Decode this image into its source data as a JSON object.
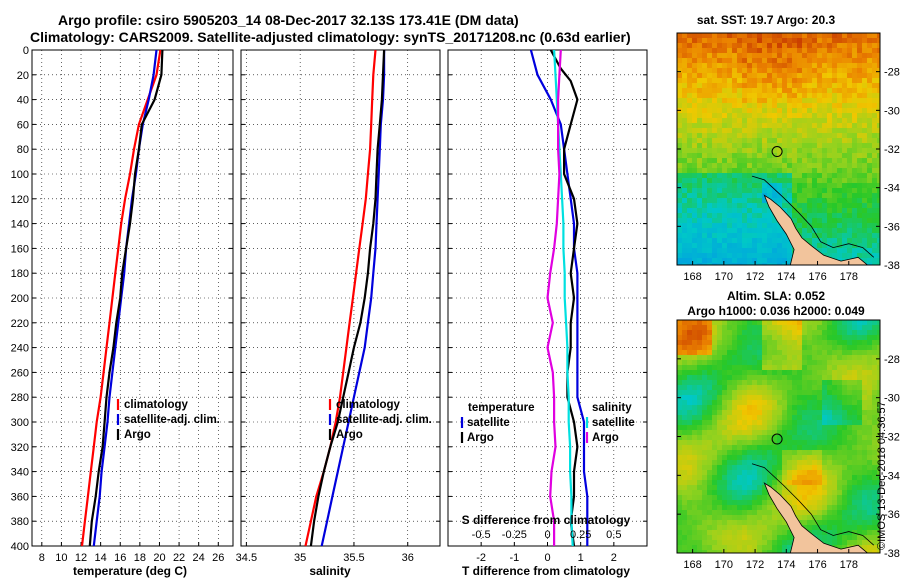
{
  "header": {
    "title_line1": "Argo profile: csiro 5905203_14 08-Dec-2017 32.13S 173.41E (DM data)",
    "title_line2": "Climatology: CARS2009. Satellite-adjusted climatology: synTS_20171208.nc (0.63d earlier)"
  },
  "colors": {
    "climatology": "#ff0000",
    "satellite": "#0000dd",
    "argo": "#000000",
    "salinity_diff": "#e000e0",
    "s_diff_sat": "#00e0e0"
  },
  "depth_ticks": [
    0,
    20,
    40,
    60,
    80,
    100,
    120,
    140,
    160,
    180,
    200,
    220,
    240,
    260,
    280,
    300,
    320,
    340,
    360,
    380,
    400
  ],
  "chart_data": [
    {
      "type": "line",
      "panel": "temperature",
      "xlabel": "temperature (deg C)",
      "ylabel": "depth",
      "xlim": [
        7,
        27.5
      ],
      "ylim": [
        400,
        0
      ],
      "xticks": [
        8,
        10,
        12,
        14,
        16,
        18,
        20,
        22,
        24,
        26
      ],
      "legend": [
        "climatology",
        "satellite-adj. clim.",
        "Argo"
      ],
      "series": [
        {
          "name": "climatology",
          "color": "#ff0000",
          "points": [
            [
              20.1,
              0
            ],
            [
              19.7,
              20
            ],
            [
              18.8,
              40
            ],
            [
              17.9,
              60
            ],
            [
              17.4,
              80
            ],
            [
              17.0,
              100
            ],
            [
              16.5,
              120
            ],
            [
              16.1,
              140
            ],
            [
              15.8,
              160
            ],
            [
              15.5,
              180
            ],
            [
              15.2,
              200
            ],
            [
              14.9,
              220
            ],
            [
              14.6,
              240
            ],
            [
              14.3,
              260
            ],
            [
              14.0,
              280
            ],
            [
              13.6,
              300
            ],
            [
              13.3,
              320
            ],
            [
              13.0,
              340
            ],
            [
              12.7,
              360
            ],
            [
              12.4,
              380
            ],
            [
              12.1,
              400
            ]
          ]
        },
        {
          "name": "satellite-adj. clim.",
          "color": "#0000dd",
          "points": [
            [
              19.7,
              0
            ],
            [
              19.4,
              20
            ],
            [
              18.9,
              40
            ],
            [
              18.3,
              60
            ],
            [
              17.9,
              80
            ],
            [
              17.6,
              100
            ],
            [
              17.2,
              120
            ],
            [
              16.9,
              140
            ],
            [
              16.6,
              160
            ],
            [
              16.4,
              180
            ],
            [
              16.1,
              200
            ],
            [
              15.8,
              220
            ],
            [
              15.5,
              240
            ],
            [
              15.2,
              260
            ],
            [
              14.9,
              280
            ],
            [
              14.7,
              300
            ],
            [
              14.4,
              320
            ],
            [
              14.1,
              340
            ],
            [
              13.9,
              360
            ],
            [
              13.6,
              380
            ],
            [
              13.3,
              400
            ]
          ]
        },
        {
          "name": "Argo",
          "color": "#000000",
          "points": [
            [
              20.3,
              0
            ],
            [
              20.2,
              20
            ],
            [
              19.5,
              40
            ],
            [
              18.2,
              60
            ],
            [
              17.9,
              80
            ],
            [
              17.5,
              100
            ],
            [
              17.3,
              120
            ],
            [
              17.0,
              140
            ],
            [
              16.6,
              160
            ],
            [
              16.2,
              180
            ],
            [
              16.0,
              200
            ],
            [
              15.6,
              220
            ],
            [
              15.3,
              240
            ],
            [
              14.9,
              260
            ],
            [
              14.6,
              280
            ],
            [
              14.4,
              300
            ],
            [
              14.2,
              320
            ],
            [
              13.8,
              340
            ],
            [
              13.5,
              360
            ],
            [
              13.1,
              380
            ],
            [
              12.9,
              400
            ]
          ]
        }
      ]
    },
    {
      "type": "line",
      "panel": "salinity",
      "xlabel": "salinity",
      "ylabel": "depth",
      "xlim": [
        34.45,
        36.3
      ],
      "ylim": [
        400,
        0
      ],
      "xticks": [
        34.5,
        35,
        35.5,
        36
      ],
      "xtick_labels": [
        "34.5",
        "35",
        "35.5",
        "36"
      ],
      "legend": [
        "climatology",
        "satellite-adj. clim.",
        "Argo"
      ],
      "series": [
        {
          "name": "climatology",
          "color": "#ff0000",
          "points": [
            [
              35.7,
              0
            ],
            [
              35.68,
              20
            ],
            [
              35.67,
              40
            ],
            [
              35.66,
              60
            ],
            [
              35.65,
              80
            ],
            [
              35.63,
              100
            ],
            [
              35.61,
              120
            ],
            [
              35.58,
              140
            ],
            [
              35.55,
              160
            ],
            [
              35.52,
              180
            ],
            [
              35.49,
              200
            ],
            [
              35.46,
              220
            ],
            [
              35.43,
              240
            ],
            [
              35.4,
              260
            ],
            [
              35.37,
              280
            ],
            [
              35.33,
              300
            ],
            [
              35.28,
              320
            ],
            [
              35.22,
              340
            ],
            [
              35.15,
              360
            ],
            [
              35.1,
              380
            ],
            [
              35.05,
              400
            ]
          ]
        },
        {
          "name": "satellite-adj. clim.",
          "color": "#0000dd",
          "points": [
            [
              35.78,
              0
            ],
            [
              35.78,
              20
            ],
            [
              35.77,
              40
            ],
            [
              35.75,
              60
            ],
            [
              35.74,
              80
            ],
            [
              35.73,
              100
            ],
            [
              35.72,
              120
            ],
            [
              35.71,
              140
            ],
            [
              35.7,
              160
            ],
            [
              35.68,
              180
            ],
            [
              35.66,
              200
            ],
            [
              35.63,
              220
            ],
            [
              35.6,
              240
            ],
            [
              35.55,
              260
            ],
            [
              35.5,
              280
            ],
            [
              35.45,
              300
            ],
            [
              35.4,
              320
            ],
            [
              35.35,
              340
            ],
            [
              35.3,
              360
            ],
            [
              35.25,
              380
            ],
            [
              35.2,
              400
            ]
          ]
        },
        {
          "name": "Argo",
          "color": "#000000",
          "points": [
            [
              35.78,
              0
            ],
            [
              35.77,
              20
            ],
            [
              35.76,
              40
            ],
            [
              35.74,
              60
            ],
            [
              35.72,
              80
            ],
            [
              35.71,
              100
            ],
            [
              35.7,
              120
            ],
            [
              35.68,
              140
            ],
            [
              35.65,
              160
            ],
            [
              35.63,
              180
            ],
            [
              35.6,
              200
            ],
            [
              35.56,
              220
            ],
            [
              35.5,
              240
            ],
            [
              35.45,
              260
            ],
            [
              35.4,
              280
            ],
            [
              35.35,
              300
            ],
            [
              35.28,
              320
            ],
            [
              35.22,
              340
            ],
            [
              35.17,
              360
            ],
            [
              35.13,
              380
            ],
            [
              35.1,
              400
            ]
          ]
        }
      ]
    },
    {
      "type": "line",
      "panel": "difference",
      "xlabel": "T difference from climatology",
      "top_axis_label": "S difference from climatology",
      "ylabel": "depth",
      "xlim": [
        -3,
        3
      ],
      "ylim": [
        400,
        0
      ],
      "xticks": [
        -2,
        -1,
        0,
        1,
        2
      ],
      "s_xticks": [
        "-0.5",
        "-0.25",
        "0",
        "0.25",
        "0.5"
      ],
      "legend_temperature": [
        "temperature",
        "satellite",
        "Argo"
      ],
      "legend_salinity": [
        "salinity",
        "satellite",
        "Argo"
      ],
      "series": [
        {
          "name": "T satellite",
          "color": "#0000dd",
          "points": [
            [
              -0.5,
              0
            ],
            [
              -0.3,
              20
            ],
            [
              0.1,
              40
            ],
            [
              0.4,
              60
            ],
            [
              0.5,
              80
            ],
            [
              0.6,
              100
            ],
            [
              0.7,
              120
            ],
            [
              0.8,
              140
            ],
            [
              0.8,
              160
            ],
            [
              0.9,
              180
            ],
            [
              0.9,
              200
            ],
            [
              0.9,
              220
            ],
            [
              0.9,
              240
            ],
            [
              0.9,
              260
            ],
            [
              0.9,
              280
            ],
            [
              1.1,
              300
            ],
            [
              1.1,
              320
            ],
            [
              1.1,
              340
            ],
            [
              1.2,
              360
            ],
            [
              1.2,
              380
            ],
            [
              1.2,
              400
            ]
          ]
        },
        {
          "name": "T Argo",
          "color": "#000000",
          "points": [
            [
              0.1,
              0
            ],
            [
              0.4,
              15
            ],
            [
              0.7,
              25
            ],
            [
              0.9,
              40
            ],
            [
              0.7,
              60
            ],
            [
              0.5,
              80
            ],
            [
              0.5,
              100
            ],
            [
              0.8,
              120
            ],
            [
              0.9,
              140
            ],
            [
              0.8,
              160
            ],
            [
              0.7,
              180
            ],
            [
              0.8,
              200
            ],
            [
              0.7,
              220
            ],
            [
              0.7,
              240
            ],
            [
              0.6,
              260
            ],
            [
              0.6,
              280
            ],
            [
              0.8,
              300
            ],
            [
              0.9,
              320
            ],
            [
              0.8,
              340
            ],
            [
              0.8,
              360
            ],
            [
              0.7,
              380
            ],
            [
              0.8,
              400
            ]
          ]
        },
        {
          "name": "S satellite",
          "color": "#00e0e0",
          "points": [
            [
              0.05,
              0
            ],
            [
              0.06,
              20
            ],
            [
              0.07,
              40
            ],
            [
              0.08,
              60
            ],
            [
              0.09,
              80
            ],
            [
              0.1,
              100
            ],
            [
              0.11,
              120
            ],
            [
              0.12,
              140
            ],
            [
              0.12,
              160
            ],
            [
              0.13,
              180
            ],
            [
              0.13,
              200
            ],
            [
              0.14,
              220
            ],
            [
              0.15,
              240
            ],
            [
              0.15,
              260
            ],
            [
              0.16,
              280
            ],
            [
              0.16,
              300
            ],
            [
              0.17,
              320
            ],
            [
              0.17,
              340
            ],
            [
              0.18,
              360
            ],
            [
              0.18,
              380
            ],
            [
              0.19,
              400
            ]
          ]
        },
        {
          "name": "S Argo",
          "color": "#e000e0",
          "points": [
            [
              0.1,
              0
            ],
            [
              0.09,
              20
            ],
            [
              0.08,
              40
            ],
            [
              0.08,
              60
            ],
            [
              0.08,
              80
            ],
            [
              0.09,
              100
            ],
            [
              0.08,
              120
            ],
            [
              0.07,
              140
            ],
            [
              0.05,
              160
            ],
            [
              0.02,
              180
            ],
            [
              0.0,
              200
            ],
            [
              0.04,
              220
            ],
            [
              0.0,
              240
            ],
            [
              0.04,
              260
            ],
            [
              0.05,
              280
            ],
            [
              0.05,
              300
            ],
            [
              0.06,
              320
            ],
            [
              0.03,
              340
            ],
            [
              0.02,
              360
            ],
            [
              0.05,
              380
            ],
            [
              0.05,
              400
            ]
          ]
        }
      ]
    },
    {
      "type": "heatmap",
      "panel": "sst_map",
      "title": "sat. SST: 19.7 Argo: 20.3",
      "xticks": [
        168,
        170,
        172,
        174,
        176,
        178
      ],
      "yticks": [
        -28,
        -30,
        -32,
        -34,
        -36,
        -38
      ],
      "lon_range": [
        167,
        180
      ],
      "lat_range": [
        -38,
        -26
      ],
      "marker_lon": 173.41,
      "marker_lat": -32.13
    },
    {
      "type": "heatmap",
      "panel": "sla_map",
      "title_line1": "Altim. SLA: 0.052",
      "title_line2": "Argo h1000: 0.036 h2000: 0.049",
      "xticks": [
        168,
        170,
        172,
        174,
        176,
        178
      ],
      "yticks": [
        -28,
        -30,
        -32,
        -34,
        -36,
        -38
      ],
      "lon_range": [
        167,
        180
      ],
      "lat_range": [
        -38,
        -26
      ],
      "marker_lon": 173.41,
      "marker_lat": -32.13
    }
  ],
  "footer": {
    "stamp": "©IMOS 13-Dec-2018 04:36:57"
  }
}
